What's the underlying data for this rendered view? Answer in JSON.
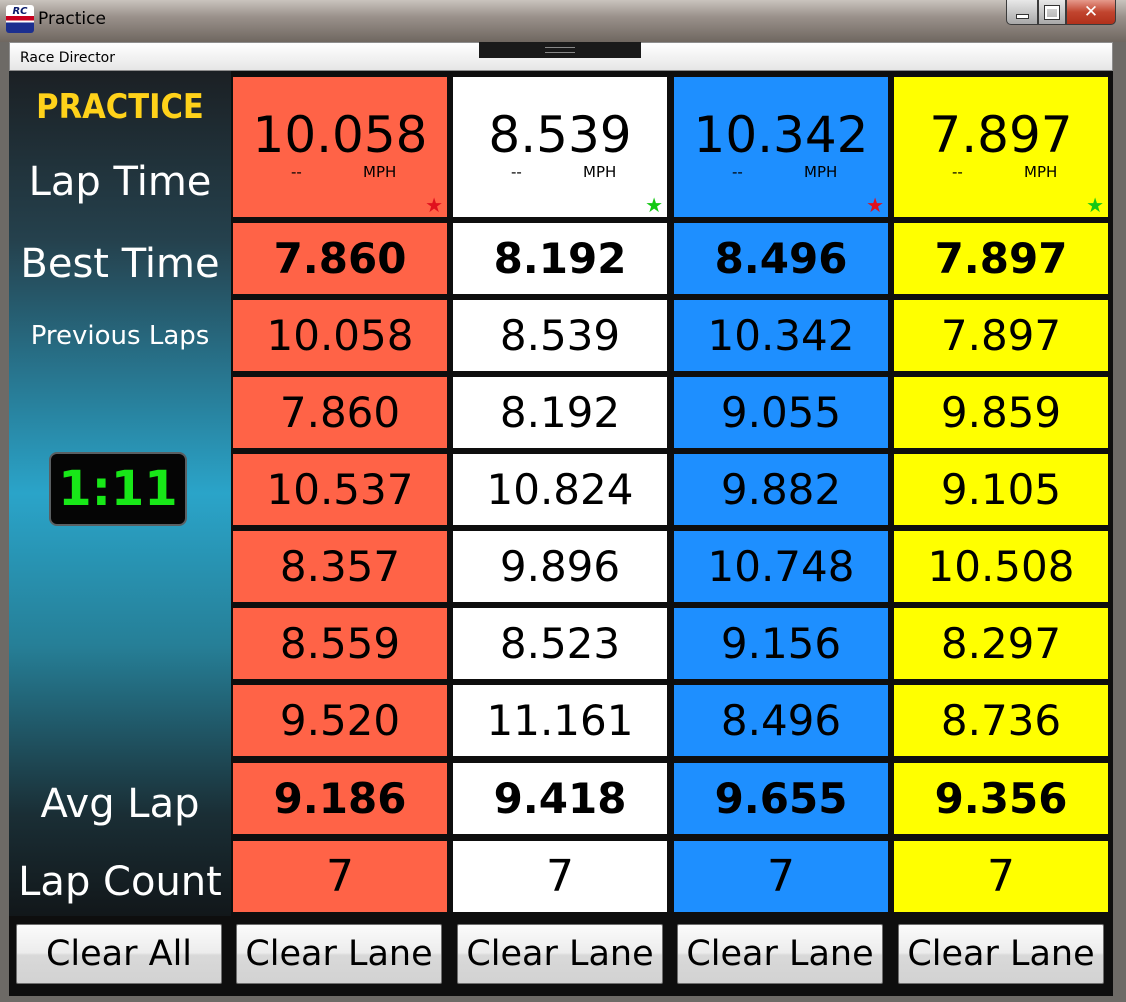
{
  "window": {
    "title": "Practice",
    "logo_text": "RC",
    "controls": {
      "minimize": "minimize",
      "maximize": "maximize",
      "close": "✕"
    }
  },
  "menubar": {
    "label": "Race Director"
  },
  "side_panel": {
    "mode": "PRACTICE",
    "labels": {
      "lap_time": "Lap Time",
      "best_time": "Best Time",
      "previous_laps": "Previous Laps",
      "avg_lap": "Avg Lap",
      "lap_count": "Lap Count"
    },
    "timer": "1:11"
  },
  "lanes": [
    {
      "color": "#ff6347",
      "lap_time": "10.058",
      "speed": "--",
      "speed_unit": "MPH",
      "star": "★",
      "star_color": "#e0101e",
      "best_time": "7.860",
      "previous_laps": [
        "10.058",
        "7.860",
        "10.537",
        "8.357",
        "8.559",
        "9.520"
      ],
      "avg_lap": "9.186",
      "lap_count": "7",
      "clear_label": "Clear Lane"
    },
    {
      "color": "#ffffff",
      "lap_time": "8.539",
      "speed": "--",
      "speed_unit": "MPH",
      "star": "★",
      "star_color": "#14c814",
      "best_time": "8.192",
      "previous_laps": [
        "8.539",
        "8.192",
        "10.824",
        "9.896",
        "8.523",
        "11.161"
      ],
      "avg_lap": "9.418",
      "lap_count": "7",
      "clear_label": "Clear Lane"
    },
    {
      "color": "#1e8fff",
      "lap_time": "10.342",
      "speed": "--",
      "speed_unit": "MPH",
      "star": "★",
      "star_color": "#e0101e",
      "best_time": "8.496",
      "previous_laps": [
        "10.342",
        "9.055",
        "9.882",
        "10.748",
        "9.156",
        "8.496"
      ],
      "avg_lap": "9.655",
      "lap_count": "7",
      "clear_label": "Clear Lane"
    },
    {
      "color": "#ffff00",
      "lap_time": "7.897",
      "speed": "--",
      "speed_unit": "MPH",
      "star": "★",
      "star_color": "#14c814",
      "best_time": "7.897",
      "previous_laps": [
        "7.897",
        "9.859",
        "9.105",
        "10.508",
        "8.297",
        "8.736"
      ],
      "avg_lap": "9.356",
      "lap_count": "7",
      "clear_label": "Clear Lane"
    }
  ],
  "buttons": {
    "clear_all": "Clear All"
  }
}
